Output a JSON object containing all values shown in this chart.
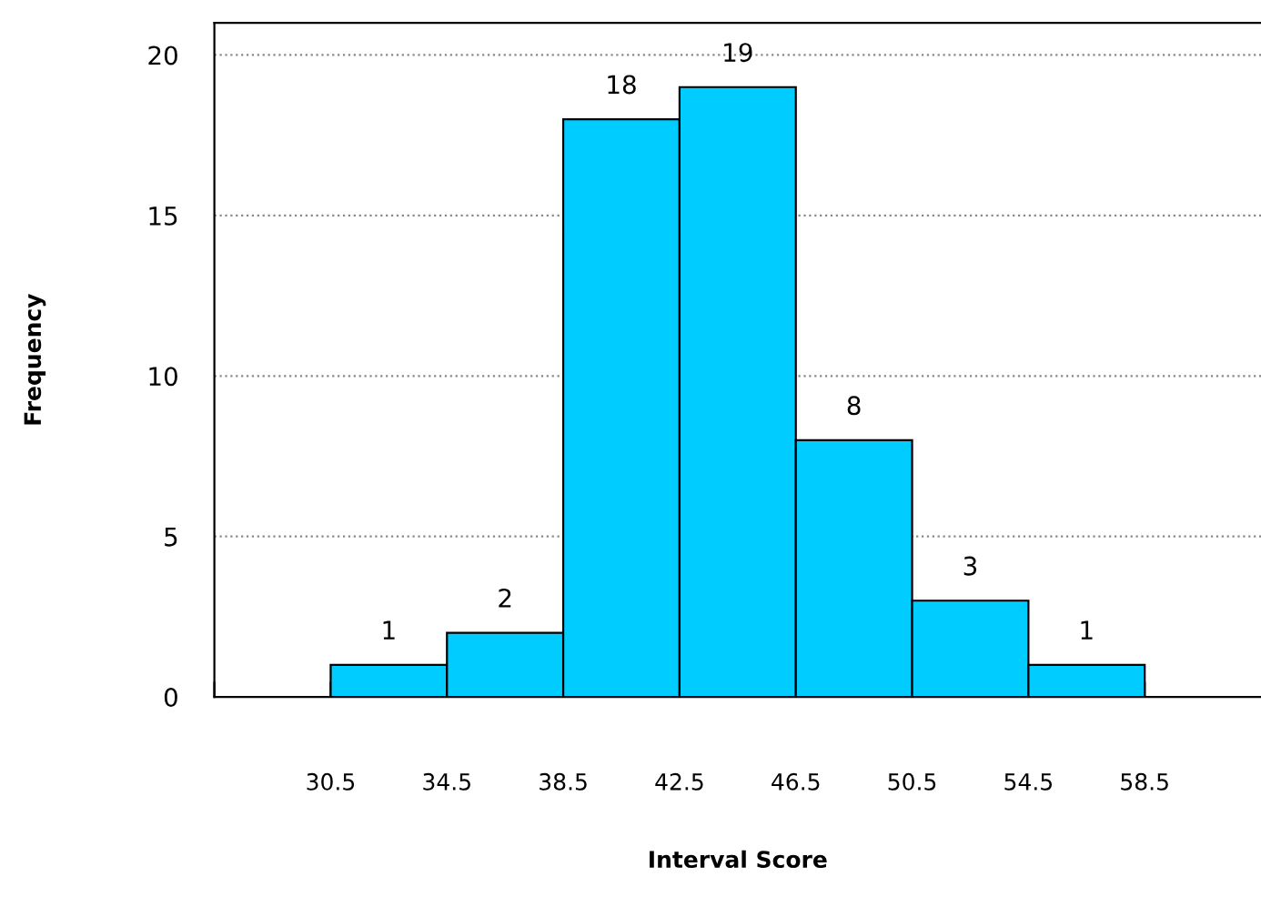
{
  "chart_data": {
    "type": "histogram",
    "xlabel": "Interval Score",
    "ylabel": "Frequency",
    "bins": [
      30.5,
      34.5,
      38.5,
      42.5,
      46.5,
      50.5,
      54.5,
      58.5
    ],
    "values": [
      1,
      2,
      18,
      19,
      8,
      3,
      1
    ],
    "color": "#00ccff",
    "data_labels": true,
    "xlim": [
      26.5,
      62.5
    ],
    "xticks": [
      {
        "value": 26.5,
        "label": null
      },
      30.5,
      34.5,
      38.5,
      42.5,
      46.5,
      50.5,
      54.5,
      58.5
    ],
    "ylim": [
      0,
      21
    ],
    "yticks": [
      0,
      5,
      10,
      15,
      20
    ],
    "grid": "y"
  }
}
